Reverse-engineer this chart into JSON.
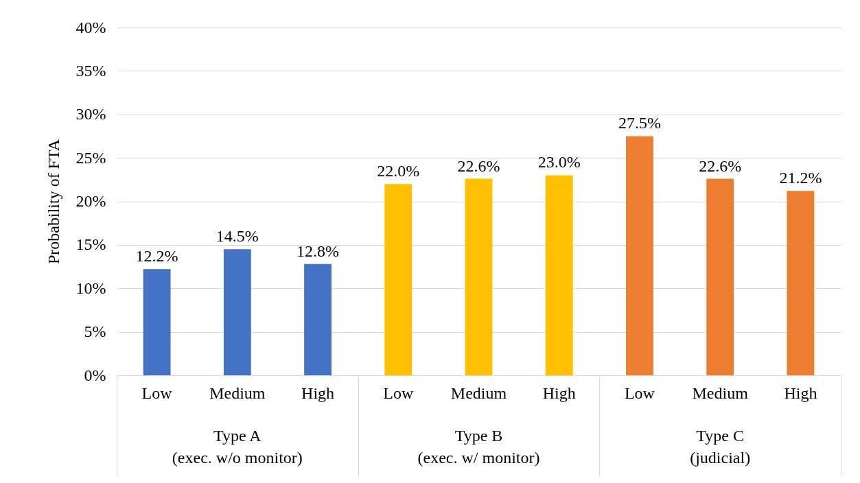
{
  "chart_data": {
    "type": "bar",
    "ylabel": "Probability of FTA",
    "categories": [
      "Low",
      "Medium",
      "High",
      "Low",
      "Medium",
      "High",
      "Low",
      "Medium",
      "High"
    ],
    "values": [
      12.2,
      14.5,
      12.8,
      22.0,
      22.6,
      23.0,
      27.5,
      22.6,
      21.2
    ],
    "value_labels": [
      "12.2%",
      "14.5%",
      "12.8%",
      "22.0%",
      "22.6%",
      "23.0%",
      "27.5%",
      "22.6%",
      "21.2%"
    ],
    "colors": [
      "#4472c4",
      "#4472c4",
      "#4472c4",
      "#ffc000",
      "#ffc000",
      "#ffc000",
      "#ed7d31",
      "#ed7d31",
      "#ed7d31"
    ],
    "ylim": [
      0,
      40
    ],
    "yticks": [
      {
        "value": 0,
        "label": "0%"
      },
      {
        "value": 5,
        "label": "5%"
      },
      {
        "value": 10,
        "label": "10%"
      },
      {
        "value": 15,
        "label": "15%"
      },
      {
        "value": 20,
        "label": "20%"
      },
      {
        "value": 25,
        "label": "25%"
      },
      {
        "value": 30,
        "label": "30%"
      },
      {
        "value": 35,
        "label": "35%"
      },
      {
        "value": 40,
        "label": "40%"
      }
    ],
    "grid": "y",
    "annotations": [
      "Type A\n(exec. w/o monitor)",
      "Type B\n(exec. w/ monitor)",
      "Type C\n(judicial)"
    ]
  }
}
